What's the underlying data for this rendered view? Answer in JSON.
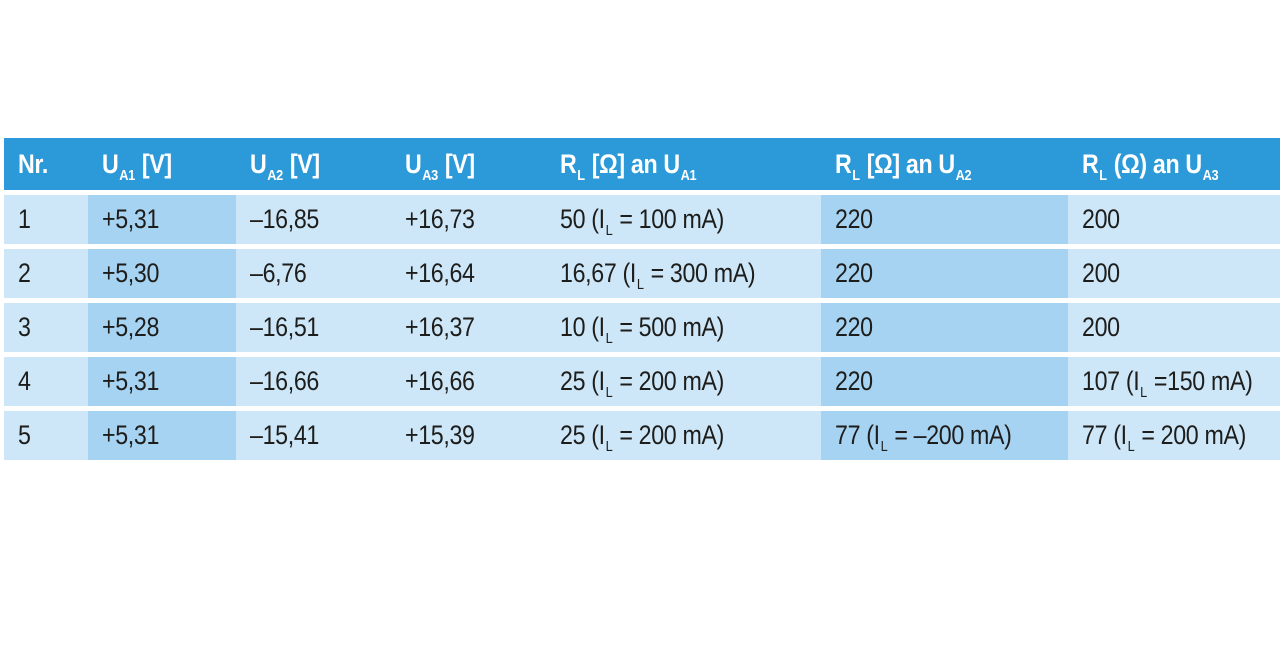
{
  "table": {
    "headers": [
      {
        "key": "nr",
        "label": "Nr."
      },
      {
        "key": "ua1",
        "parts": [
          "U",
          "A1",
          " [V]"
        ]
      },
      {
        "key": "ua2",
        "parts": [
          "U",
          "A2",
          " [V]"
        ]
      },
      {
        "key": "ua3",
        "parts": [
          "U",
          "A3",
          " [V]"
        ]
      },
      {
        "key": "rl_ua1",
        "parts": [
          "R",
          "L",
          " [Ω] an U",
          "A1"
        ]
      },
      {
        "key": "rl_ua2",
        "parts": [
          "R",
          "L",
          " [Ω] an U",
          "A2"
        ]
      },
      {
        "key": "rl_ua3",
        "parts": [
          "R",
          "L",
          " (Ω) an U",
          "A3"
        ]
      }
    ],
    "rows": [
      {
        "nr": "1",
        "ua1": "+5,31",
        "ua2": "–16,85",
        "ua3": "+16,73",
        "rl_ua1": {
          "pre": "50 (I",
          "sub": "L",
          "post": " = 100 mA)"
        },
        "rl_ua2": {
          "pre": "220"
        },
        "rl_ua3": {
          "pre": "200"
        }
      },
      {
        "nr": "2",
        "ua1": "+5,30",
        "ua2": "–6,76",
        "ua3": "+16,64",
        "rl_ua1": {
          "pre": "16,67 (I",
          "sub": "L",
          "post": " = 300 mA)"
        },
        "rl_ua2": {
          "pre": "220"
        },
        "rl_ua3": {
          "pre": "200"
        }
      },
      {
        "nr": "3",
        "ua1": "+5,28",
        "ua2": "–16,51",
        "ua3": "+16,37",
        "rl_ua1": {
          "pre": "10 (I",
          "sub": "L",
          "post": " = 500 mA)"
        },
        "rl_ua2": {
          "pre": "220"
        },
        "rl_ua3": {
          "pre": "200"
        }
      },
      {
        "nr": "4",
        "ua1": "+5,31",
        "ua2": "–16,66",
        "ua3": "+16,66",
        "rl_ua1": {
          "pre": "25 (I",
          "sub": "L",
          "post": " = 200 mA)"
        },
        "rl_ua2": {
          "pre": "220"
        },
        "rl_ua3": {
          "pre": "107 (I",
          "sub": "L",
          "post": " =150 mA)"
        }
      },
      {
        "nr": "5",
        "ua1": "+5,31",
        "ua2": "–15,41",
        "ua3": "+15,39",
        "rl_ua1": {
          "pre": "25 (I",
          "sub": "L",
          "post": " = 200 mA)"
        },
        "rl_ua2": {
          "pre": "77 (I",
          "sub": "L",
          "post": " = –200 mA)"
        },
        "rl_ua3": {
          "pre": "77 (I",
          "sub": "L",
          "post": " = 200 mA)"
        }
      }
    ]
  },
  "colors": {
    "header_bg": "#2c9ad8",
    "header_text": "#ffffff",
    "band_light": "#cde7f8",
    "band_dark": "#a7d3f3",
    "cell_text": "#1d1d1b"
  }
}
